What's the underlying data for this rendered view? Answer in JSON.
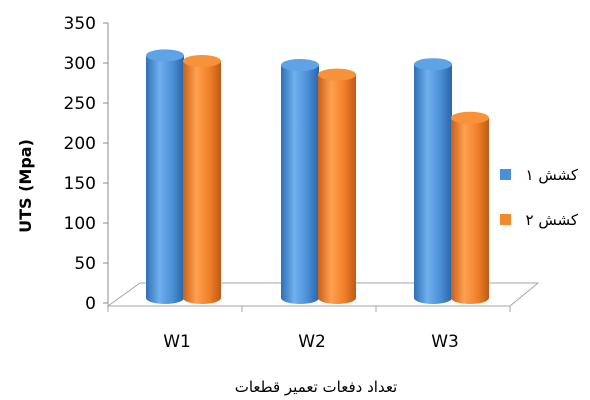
{
  "chart_data": {
    "type": "bar",
    "categories": [
      "W1",
      "W2",
      "W3"
    ],
    "series": [
      {
        "name": "کشش ۱",
        "values": [
          307,
          295,
          296
        ],
        "color": "#4A90D9"
      },
      {
        "name": "کشش ۲",
        "values": [
          300,
          283,
          229
        ],
        "color": "#F28A30"
      }
    ],
    "title": "",
    "xlabel": "تعداد دفعات تعمیر قطعات",
    "ylabel": "UTS (Mpa)",
    "ylim": [
      0,
      350
    ],
    "yticks": [
      0,
      50,
      100,
      150,
      200,
      250,
      300,
      350
    ],
    "legend_position": "right",
    "grid": false,
    "style": "3d-cylinder"
  }
}
